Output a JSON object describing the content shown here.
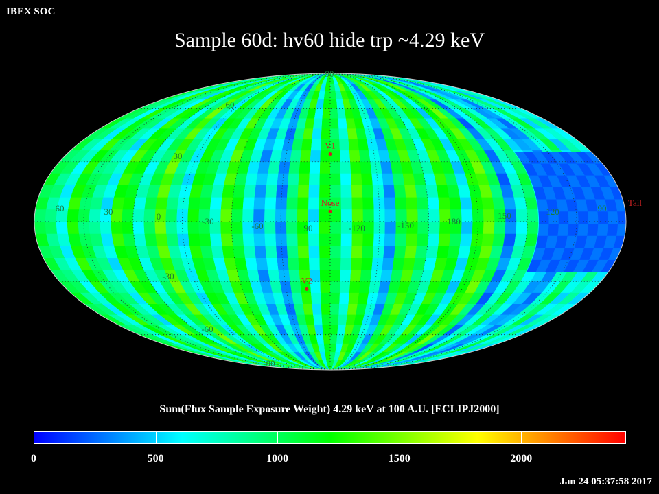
{
  "header": {
    "source_label": "IBEX SOC"
  },
  "title": "Sample 60d: hv60 hide trp ~4.29 keV",
  "colorbar": {
    "title": "Sum(Flux Sample Exposure Weight)  4.29 keV at 100 A.U. [ECLIPJ2000]",
    "range": [
      0,
      2430
    ],
    "ticks": [
      "0",
      "500",
      "1000",
      "1500",
      "2000"
    ],
    "stops": [
      "#0000ff",
      "#00ffff",
      "#00ff00",
      "#ffff00",
      "#ff0000"
    ]
  },
  "timestamp": "Jan 24 05:37:58 2017",
  "chart_data": {
    "type": "heatmap",
    "projection": "mollweide",
    "title": "Sample 60d: hv60 hide trp ~4.29 keV",
    "colorbar_label": "Sum(Flux Sample Exposure Weight)  4.29 keV at 100 A.U. [ECLIPJ2000]",
    "value_range": [
      0,
      2430
    ],
    "longitude_labels": [
      "60",
      "30",
      "0",
      "-30",
      "-60",
      "90",
      "-120",
      "-150",
      "180",
      "150",
      "120",
      "90"
    ],
    "latitude_labels": [
      "90",
      "60",
      "30",
      "-30",
      "-60",
      "-90"
    ],
    "markers": [
      {
        "label": "V1",
        "lon_offset": 0,
        "lat": 34
      },
      {
        "label": "Nose",
        "lon_offset": 0,
        "lat": 5
      },
      {
        "label": "V2",
        "lon_offset": -16,
        "lat": -34
      },
      {
        "label": "Tail",
        "lon_offset": 180,
        "lat": 5
      }
    ],
    "strip_values": [
      1050,
      900,
      650,
      1250,
      1000,
      850,
      600,
      1300,
      1150,
      700,
      1000,
      1400,
      900,
      600,
      1200,
      1050,
      700,
      1350,
      1100,
      650,
      400,
      700,
      350,
      900,
      1300,
      600,
      1200,
      1050,
      700,
      1350,
      1150,
      650,
      400,
      1050,
      1350,
      1000,
      700,
      1300,
      1100,
      550,
      1200,
      1400,
      1000,
      300,
      700,
      1000,
      600,
      400,
      350,
      700,
      1000,
      550,
      800,
      600
    ],
    "low_region": {
      "lon_offset_range": [
        127,
        180
      ],
      "lat_range": [
        -25,
        35
      ],
      "value": 200
    }
  }
}
